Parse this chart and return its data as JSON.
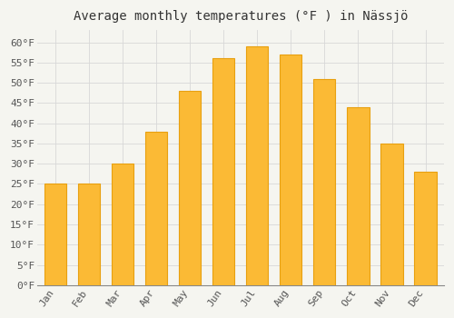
{
  "title": "Average monthly temperatures (°F ) in Nässjö",
  "months": [
    "Jan",
    "Feb",
    "Mar",
    "Apr",
    "May",
    "Jun",
    "Jul",
    "Aug",
    "Sep",
    "Oct",
    "Nov",
    "Dec"
  ],
  "values": [
    25,
    25,
    30,
    38,
    48,
    56,
    59,
    57,
    51,
    44,
    35,
    28
  ],
  "bar_color": "#FBBA35",
  "bar_edge_color": "#E8A010",
  "ylim": [
    0,
    63
  ],
  "yticks": [
    0,
    5,
    10,
    15,
    20,
    25,
    30,
    35,
    40,
    45,
    50,
    55,
    60
  ],
  "ytick_labels": [
    "0°F",
    "5°F",
    "10°F",
    "15°F",
    "20°F",
    "25°F",
    "30°F",
    "35°F",
    "40°F",
    "45°F",
    "50°F",
    "55°F",
    "60°F"
  ],
  "background_color": "#f5f5f0",
  "grid_color": "#d8d8d8",
  "title_fontsize": 10,
  "tick_fontsize": 8,
  "font_family": "monospace",
  "bar_width": 0.65
}
